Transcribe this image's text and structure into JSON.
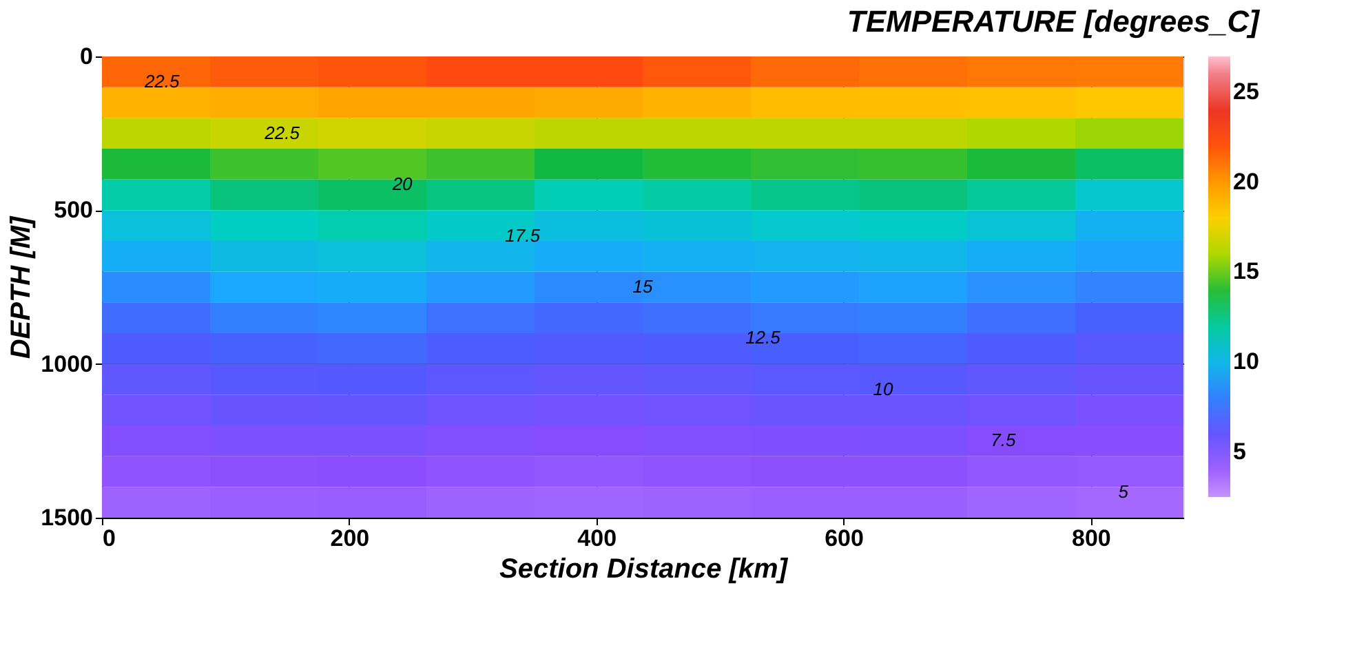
{
  "chart_data": {
    "type": "heatmap",
    "title": "TEMPERATURE [degrees_C]",
    "xlabel": "Section Distance [km]",
    "ylabel": "DEPTH [M]",
    "x": [
      43.75,
      131.25,
      218.75,
      306.25,
      393.75,
      481.25,
      568.75,
      656.25,
      743.75,
      831.25
    ],
    "y": [
      50,
      150,
      250,
      350,
      450,
      550,
      650,
      750,
      850,
      950,
      1050,
      1150,
      1250,
      1350,
      1450
    ],
    "cells": [
      [
        21.5,
        21.8,
        22,
        22.3,
        22.3,
        21.9,
        21.4,
        21.2,
        21,
        20.9
      ],
      [
        19.1,
        19.3,
        19.6,
        19.6,
        19.4,
        19.1,
        18.8,
        18.7,
        18.6,
        18.4
      ],
      [
        16.4,
        16.7,
        16.9,
        16.7,
        16.4,
        16.4,
        16.4,
        16.4,
        16.1,
        15.7
      ],
      [
        13.8,
        14.3,
        14.6,
        14.3,
        13.6,
        13.9,
        14.1,
        14.2,
        13.8,
        13
      ],
      [
        11.8,
        12.6,
        13,
        12.5,
        11.6,
        11.9,
        12.3,
        12.6,
        12.1,
        10.9
      ],
      [
        10.5,
        11.3,
        11.7,
        11.1,
        10.4,
        10.6,
        11,
        11.2,
        10.7,
        9.7
      ],
      [
        9.5,
        10.2,
        10.5,
        9.9,
        9.4,
        9.6,
        9.8,
        10,
        9.5,
        9
      ],
      [
        8.4,
        9.2,
        9.4,
        8.8,
        8.3,
        8.5,
        8.8,
        9,
        8.5,
        8.1
      ],
      [
        7.4,
        8,
        8.2,
        7.6,
        7.3,
        7.5,
        7.8,
        8,
        7.5,
        7.1
      ],
      [
        6.8,
        7.1,
        7.3,
        6.9,
        6.7,
        6.8,
        7,
        7.2,
        6.8,
        6.5
      ],
      [
        6.2,
        6.5,
        6.6,
        6.3,
        6.1,
        6.2,
        6.4,
        6.5,
        6.2,
        5.9
      ],
      [
        5.6,
        5.9,
        6,
        5.7,
        5.5,
        5.6,
        5.8,
        5.8,
        5.6,
        5.3
      ],
      [
        5,
        5.2,
        5.3,
        5,
        4.9,
        5,
        5.1,
        5.2,
        4.9,
        4.8
      ],
      [
        4.5,
        4.6,
        4.7,
        4.5,
        4.4,
        4.5,
        4.6,
        4.6,
        4.4,
        4.3
      ],
      [
        4,
        4.1,
        4.2,
        4,
        3.9,
        4,
        4.1,
        4.1,
        3.9,
        3.8
      ]
    ],
    "xlim": [
      0,
      875
    ],
    "xticks": [
      0,
      200,
      400,
      600,
      800
    ],
    "ylim": [
      1500,
      0
    ],
    "yticks": [
      0,
      500,
      1000,
      1500
    ],
    "clim": [
      2.5,
      27
    ],
    "cticks": [
      5,
      10,
      15,
      20,
      25
    ],
    "grid": true,
    "annotations": [
      "22.5",
      "22.5",
      "20",
      "17.5",
      "15",
      "12.5",
      "10",
      "7.5",
      "5"
    ]
  }
}
